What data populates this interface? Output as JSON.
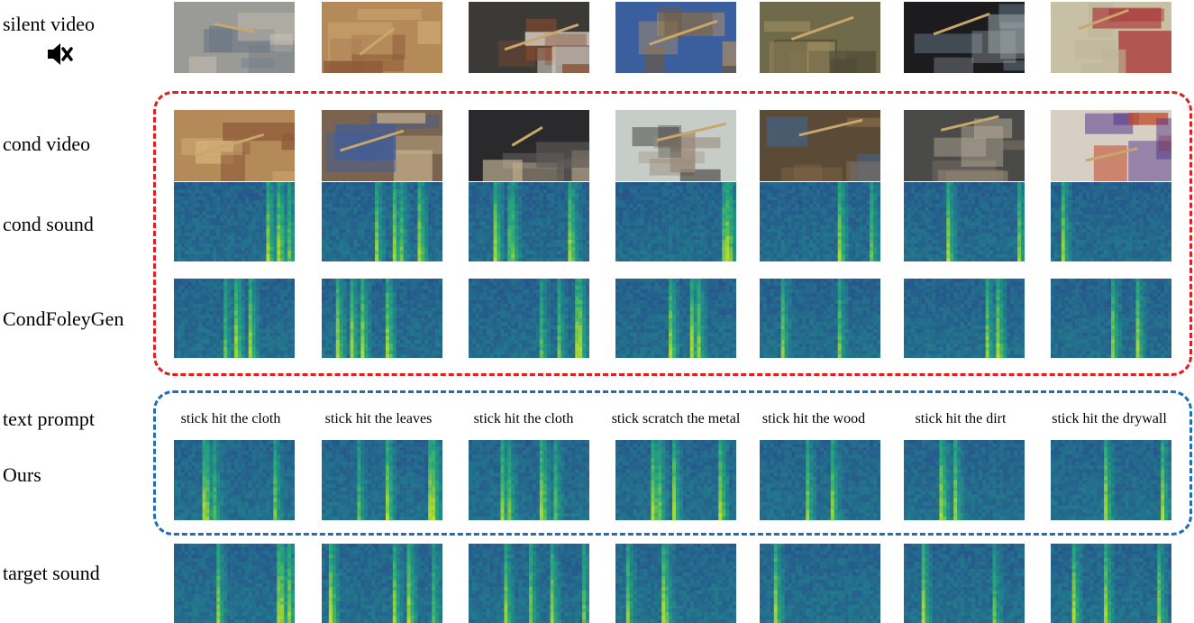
{
  "row_labels": {
    "silent_video": "silent video",
    "cond_video": "cond video",
    "cond_sound": "cond sound",
    "condfoleygen": "CondFoleyGen",
    "text_prompt": "text prompt",
    "ours": "Ours",
    "target_sound": "target sound"
  },
  "mute_icon": "speaker-muted-icon",
  "text_prompts": [
    "stick hit the cloth",
    "stick hit the leaves",
    "stick hit the cloth",
    "stick scratch the metal",
    "stick hit the wood",
    "stick hit the dirt",
    "stick hit the drywall"
  ],
  "colors": {
    "condition_frame": "#e02020",
    "ours_frame": "#1f6fb6"
  }
}
